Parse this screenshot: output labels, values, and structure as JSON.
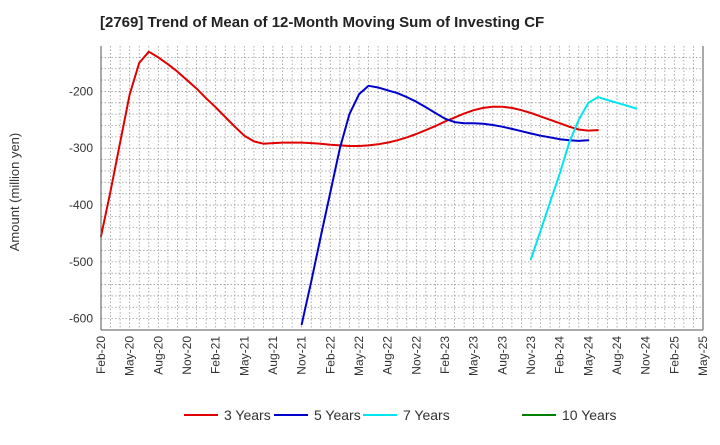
{
  "chart_data": {
    "type": "line",
    "title": "[2769]  Trend of Mean of 12-Month Moving Sum of Investing CF",
    "xlabel": "",
    "ylabel": "Amount (million yen)",
    "ylim": [
      -620,
      -120
    ],
    "yticks": [
      -600,
      -500,
      -400,
      -300,
      -200
    ],
    "grid": true,
    "legend_position": "bottom",
    "x_categories": [
      "Feb-20",
      "May-20",
      "Aug-20",
      "Nov-20",
      "Feb-21",
      "May-21",
      "Aug-21",
      "Nov-21",
      "Feb-22",
      "May-22",
      "Aug-22",
      "Nov-22",
      "Feb-23",
      "May-23",
      "Aug-23",
      "Nov-23",
      "Feb-24",
      "May-24",
      "Aug-24",
      "Nov-24",
      "Feb-25",
      "May-25"
    ],
    "series": [
      {
        "name": "3 Years",
        "color": "#e00000",
        "start_index": 0,
        "values": [
          -455,
          -375,
          -290,
          -205,
          -150,
          -130,
          -140,
          -152,
          -165,
          -180,
          -195,
          -212,
          -228,
          -245,
          -262,
          -278,
          -288,
          -292,
          -291,
          -290,
          -290,
          -290,
          -291,
          -292,
          -294,
          -295,
          -296,
          -296,
          -295,
          -293,
          -290,
          -286,
          -281,
          -275,
          -268,
          -261,
          -253,
          -246,
          -239,
          -233,
          -229,
          -227,
          -227,
          -229,
          -233,
          -238,
          -244,
          -250,
          -256,
          -262,
          -267,
          -269,
          -268
        ]
      },
      {
        "name": "5 Years",
        "color": "#0000cc",
        "start_index": 21,
        "values": [
          -610,
          -535,
          -455,
          -378,
          -300,
          -240,
          -205,
          -190,
          -193,
          -198,
          -203,
          -210,
          -218,
          -228,
          -238,
          -248,
          -254,
          -256,
          -256,
          -257,
          -259,
          -262,
          -266,
          -270,
          -274,
          -278,
          -281,
          -284,
          -286,
          -287,
          -286
        ]
      },
      {
        "name": "7 Years",
        "color": "#00e5ee",
        "start_index": 45,
        "values": [
          -495,
          -445,
          -395,
          -345,
          -290,
          -250,
          -220,
          -210,
          -215,
          -220,
          -225,
          -230
        ]
      },
      {
        "name": "10 Years",
        "color": "#008000",
        "start_index": null,
        "values": []
      }
    ]
  }
}
